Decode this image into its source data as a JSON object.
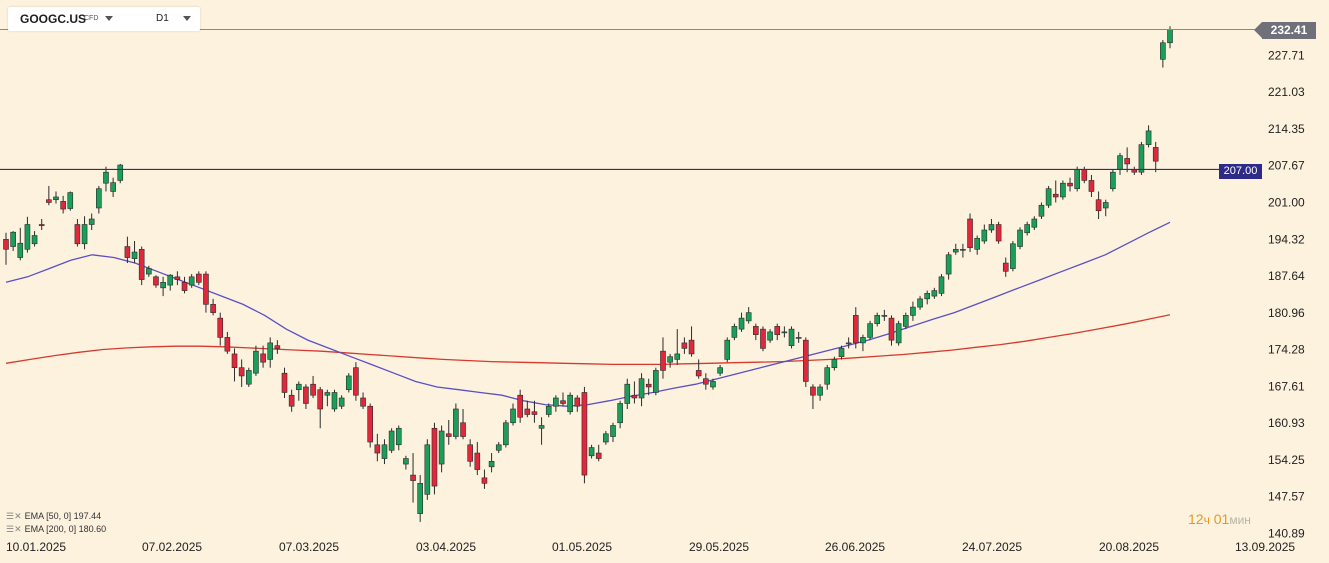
{
  "header": {
    "symbol": "GOOGC.US",
    "symbol_tag": "CFD",
    "timeframe": "D1"
  },
  "indicators": [
    {
      "label": "EMA [50, 0] 197.44",
      "color": "#5b4fc4"
    },
    {
      "label": "EMA [200, 0] 180.60",
      "color": "#d63a2f"
    }
  ],
  "countdown": {
    "hours": "12",
    "hours_unit": "ч",
    "minutes": "01",
    "minutes_unit": "мин"
  },
  "price_tag": "232.41",
  "level_tag": "207.00",
  "colors": {
    "up": "#1b9e5a",
    "down": "#e0283c",
    "level_line": "#2e2a88",
    "ema50": "#5b4fc4",
    "ema200": "#d63a2f",
    "background": "#fdf2de"
  },
  "chart_data": {
    "type": "candlestick",
    "y_ticks": [
      "232.41",
      "227.71",
      "221.03",
      "214.35",
      "207.67",
      "201.00",
      "194.32",
      "187.64",
      "180.96",
      "174.28",
      "167.61",
      "160.93",
      "154.25",
      "147.57",
      "140.89"
    ],
    "x_ticks": [
      "10.01.2025",
      "07.02.2025",
      "07.03.2025",
      "03.04.2025",
      "01.05.2025",
      "29.05.2025",
      "26.06.2025",
      "24.07.2025",
      "20.08.2025",
      "13.09.2025"
    ],
    "ylim": [
      140.89,
      232.41
    ],
    "horizontal_level": 207.0,
    "last_price": 232.41,
    "candles_ohlc": [
      [
        194.3,
        195.5,
        189.7,
        192.5
      ],
      [
        193.0,
        195.8,
        192.2,
        195.6
      ],
      [
        191.0,
        196.4,
        190.5,
        193.6
      ],
      [
        192.5,
        198.4,
        191.9,
        197.0
      ],
      [
        193.5,
        195.8,
        193.0,
        195.0
      ],
      [
        197.0,
        198.0,
        196.0,
        196.8
      ],
      [
        201.5,
        204.0,
        200.5,
        201.0
      ],
      [
        201.5,
        203.0,
        200.8,
        202.0
      ],
      [
        201.2,
        202.2,
        199.0,
        199.8
      ],
      [
        199.9,
        203.0,
        199.5,
        202.8
      ],
      [
        197.0,
        198.0,
        193.0,
        193.5
      ],
      [
        193.5,
        198.5,
        192.5,
        197.0
      ],
      [
        197.0,
        199.0,
        196.0,
        198.0
      ],
      [
        200.0,
        204.0,
        199.0,
        203.5
      ],
      [
        204.5,
        207.5,
        203.0,
        206.5
      ],
      [
        203.0,
        205.5,
        202.0,
        204.6
      ],
      [
        205.0,
        208.0,
        204.5,
        207.8
      ],
      [
        193.0,
        194.8,
        190.0,
        191.0
      ],
      [
        190.8,
        194.0,
        190.0,
        192.0
      ],
      [
        192.5,
        193.0,
        186.0,
        187.0
      ],
      [
        188.0,
        189.5,
        187.5,
        189.0
      ],
      [
        187.5,
        187.8,
        185.5,
        186.0
      ],
      [
        185.5,
        187.5,
        184.0,
        186.5
      ],
      [
        186.0,
        188.0,
        185.0,
        187.8
      ],
      [
        187.5,
        188.5,
        186.0,
        187.0
      ],
      [
        186.5,
        187.5,
        184.5,
        185.0
      ],
      [
        186.0,
        188.0,
        185.5,
        187.5
      ],
      [
        188.0,
        188.5,
        186.0,
        186.5
      ],
      [
        188.0,
        188.5,
        181.0,
        182.5
      ],
      [
        182.5,
        183.5,
        180.5,
        181.0
      ],
      [
        180.0,
        181.0,
        175.0,
        176.5
      ],
      [
        176.5,
        177.5,
        173.5,
        174.0
      ],
      [
        173.5,
        174.5,
        168.5,
        171.0
      ],
      [
        171.0,
        172.5,
        167.5,
        169.5
      ],
      [
        168.0,
        171.0,
        167.5,
        170.5
      ],
      [
        170.0,
        175.0,
        169.5,
        174.0
      ],
      [
        173.5,
        175.0,
        171.0,
        172.0
      ],
      [
        172.5,
        176.5,
        171.0,
        175.5
      ],
      [
        175.0,
        176.0,
        173.5,
        174.5
      ],
      [
        170.0,
        171.0,
        165.5,
        166.5
      ],
      [
        166.0,
        167.0,
        163.0,
        164.0
      ],
      [
        167.0,
        168.5,
        165.0,
        168.0
      ],
      [
        167.5,
        168.0,
        163.5,
        164.5
      ],
      [
        168.0,
        169.5,
        165.5,
        166.0
      ],
      [
        167.0,
        167.5,
        160.0,
        163.5
      ],
      [
        166.0,
        167.0,
        164.0,
        166.5
      ],
      [
        163.5,
        167.0,
        163.0,
        166.5
      ],
      [
        164.0,
        166.0,
        163.5,
        165.5
      ],
      [
        167.0,
        170.0,
        166.5,
        169.5
      ],
      [
        171.0,
        172.0,
        165.0,
        166.0
      ],
      [
        165.5,
        166.5,
        163.5,
        164.0
      ],
      [
        164.0,
        164.5,
        156.5,
        157.5
      ],
      [
        157.0,
        159.0,
        154.0,
        155.5
      ],
      [
        154.5,
        158.0,
        153.5,
        157.0
      ],
      [
        156.0,
        160.0,
        155.5,
        159.5
      ],
      [
        157.0,
        160.5,
        156.0,
        160.0
      ],
      [
        153.5,
        155.0,
        152.5,
        154.5
      ],
      [
        151.5,
        155.5,
        146.5,
        150.5
      ],
      [
        144.5,
        151.5,
        143.0,
        150.0
      ],
      [
        148.0,
        158.0,
        147.0,
        157.0
      ],
      [
        160.0,
        161.0,
        148.0,
        149.5
      ],
      [
        153.5,
        160.5,
        152.0,
        159.5
      ],
      [
        159.0,
        161.5,
        157.0,
        158.5
      ],
      [
        158.5,
        164.5,
        158.0,
        163.5
      ],
      [
        161.0,
        163.5,
        158.0,
        158.5
      ],
      [
        157.0,
        158.0,
        153.0,
        154.0
      ],
      [
        155.5,
        157.5,
        151.5,
        152.5
      ],
      [
        151.0,
        152.5,
        149.0,
        150.0
      ],
      [
        153.0,
        155.5,
        152.0,
        154.0
      ],
      [
        156.0,
        157.5,
        155.5,
        157.0
      ],
      [
        157.0,
        161.5,
        156.5,
        161.0
      ],
      [
        161.0,
        164.5,
        160.5,
        163.5
      ],
      [
        166.0,
        167.0,
        161.0,
        162.0
      ],
      [
        163.5,
        165.0,
        162.0,
        162.5
      ],
      [
        163.0,
        165.0,
        161.0,
        162.5
      ],
      [
        160.0,
        162.0,
        157.0,
        160.5
      ],
      [
        162.5,
        164.5,
        162.0,
        164.0
      ],
      [
        164.0,
        166.0,
        163.0,
        165.5
      ],
      [
        165.0,
        166.5,
        164.0,
        164.5
      ],
      [
        163.0,
        166.5,
        162.5,
        166.0
      ],
      [
        165.5,
        166.0,
        163.0,
        164.0
      ],
      [
        166.5,
        167.5,
        150.0,
        151.5
      ],
      [
        155.0,
        157.0,
        154.5,
        156.5
      ],
      [
        155.5,
        157.0,
        154.0,
        154.5
      ],
      [
        157.5,
        159.5,
        157.0,
        159.0
      ],
      [
        158.5,
        161.0,
        157.5,
        160.5
      ],
      [
        161.0,
        165.0,
        160.0,
        164.5
      ],
      [
        164.5,
        169.0,
        163.5,
        168.0
      ],
      [
        166.0,
        168.5,
        164.5,
        165.5
      ],
      [
        165.5,
        170.0,
        164.0,
        169.0
      ],
      [
        168.0,
        169.0,
        166.0,
        167.5
      ],
      [
        166.5,
        171.0,
        166.0,
        170.5
      ],
      [
        174.0,
        176.5,
        169.0,
        170.5
      ],
      [
        172.0,
        173.5,
        171.0,
        173.0
      ],
      [
        172.5,
        178.0,
        171.5,
        173.5
      ],
      [
        175.5,
        176.5,
        173.5,
        174.5
      ],
      [
        176.0,
        178.5,
        173.0,
        173.5
      ],
      [
        170.5,
        172.5,
        169.0,
        169.5
      ],
      [
        169.0,
        170.0,
        167.0,
        168.0
      ],
      [
        167.5,
        169.0,
        167.0,
        168.5
      ],
      [
        170.0,
        171.5,
        169.5,
        171.0
      ],
      [
        172.5,
        176.5,
        172.0,
        176.0
      ],
      [
        176.5,
        179.0,
        176.0,
        178.5
      ],
      [
        178.0,
        181.0,
        177.5,
        180.0
      ],
      [
        179.5,
        182.0,
        179.0,
        181.0
      ],
      [
        178.5,
        179.0,
        176.0,
        177.0
      ],
      [
        178.0,
        178.5,
        174.0,
        174.5
      ],
      [
        176.0,
        178.0,
        175.5,
        177.5
      ],
      [
        178.5,
        179.0,
        176.0,
        177.0
      ],
      [
        177.5,
        178.5,
        176.5,
        177.5
      ],
      [
        175.0,
        178.5,
        174.5,
        178.0
      ],
      [
        176.5,
        177.5,
        175.5,
        176.5
      ],
      [
        176.0,
        176.5,
        167.5,
        168.5
      ],
      [
        167.5,
        168.0,
        163.5,
        166.0
      ],
      [
        166.0,
        168.0,
        165.0,
        167.5
      ],
      [
        168.0,
        171.5,
        167.0,
        171.0
      ],
      [
        171.0,
        173.0,
        170.5,
        172.5
      ],
      [
        173.0,
        175.0,
        172.5,
        174.5
      ],
      [
        175.5,
        176.5,
        174.5,
        175.5
      ],
      [
        180.5,
        182.0,
        174.5,
        175.5
      ],
      [
        175.5,
        177.0,
        174.0,
        176.5
      ],
      [
        176.5,
        179.5,
        176.0,
        179.0
      ],
      [
        179.0,
        181.0,
        178.5,
        180.5
      ],
      [
        180.5,
        181.5,
        179.5,
        180.5
      ],
      [
        180.0,
        180.5,
        175.0,
        176.0
      ],
      [
        175.5,
        179.5,
        175.0,
        179.0
      ],
      [
        178.5,
        181.0,
        178.0,
        180.5
      ],
      [
        180.5,
        183.0,
        179.5,
        182.0
      ],
      [
        182.0,
        184.0,
        181.5,
        183.5
      ],
      [
        183.5,
        185.0,
        182.5,
        184.5
      ],
      [
        184.0,
        185.5,
        183.5,
        185.0
      ],
      [
        184.5,
        188.0,
        184.0,
        187.5
      ],
      [
        188.0,
        192.0,
        187.0,
        191.5
      ],
      [
        192.0,
        193.5,
        191.5,
        192.5
      ],
      [
        192.5,
        193.5,
        191.0,
        192.5
      ],
      [
        198.0,
        199.0,
        192.0,
        192.8
      ],
      [
        192.5,
        195.0,
        191.5,
        194.5
      ],
      [
        194.0,
        197.0,
        193.5,
        196.0
      ],
      [
        196.0,
        198.0,
        195.5,
        197.0
      ],
      [
        197.0,
        197.5,
        193.5,
        194.0
      ],
      [
        190.0,
        191.0,
        187.5,
        188.5
      ],
      [
        189.0,
        194.0,
        188.5,
        193.5
      ],
      [
        193.0,
        196.5,
        192.5,
        196.0
      ],
      [
        195.5,
        197.5,
        195.0,
        197.0
      ],
      [
        196.5,
        198.5,
        196.0,
        198.0
      ],
      [
        198.5,
        201.0,
        198.0,
        200.5
      ],
      [
        200.5,
        204.0,
        200.0,
        203.5
      ],
      [
        202.5,
        205.0,
        201.0,
        202.0
      ],
      [
        202.0,
        205.0,
        201.5,
        204.5
      ],
      [
        204.5,
        205.5,
        203.0,
        204.0
      ],
      [
        203.5,
        207.5,
        203.0,
        207.0
      ],
      [
        207.0,
        207.5,
        204.5,
        205.0
      ],
      [
        205.0,
        206.0,
        202.0,
        203.0
      ],
      [
        201.5,
        203.0,
        198.0,
        199.5
      ],
      [
        200.0,
        201.5,
        198.5,
        201.0
      ],
      [
        203.5,
        207.0,
        203.0,
        206.5
      ],
      [
        207.0,
        210.0,
        206.0,
        209.5
      ],
      [
        209.0,
        211.0,
        206.5,
        208.0
      ],
      [
        207.0,
        207.5,
        206.0,
        206.5
      ],
      [
        206.5,
        212.0,
        206.0,
        211.5
      ],
      [
        211.5,
        215.0,
        211.0,
        214.0
      ],
      [
        211.0,
        212.0,
        206.5,
        208.5
      ],
      [
        227.0,
        230.5,
        225.5,
        230.0
      ],
      [
        230.0,
        233.0,
        229.0,
        232.4
      ]
    ],
    "ema50": [
      186.5,
      187.5,
      189.0,
      190.5,
      191.5,
      191.0,
      190.0,
      188.5,
      187.0,
      185.5,
      184.0,
      182.5,
      180.5,
      178.0,
      176.0,
      174.5,
      173.0,
      171.5,
      170.0,
      168.5,
      167.5,
      167.0,
      166.5,
      166.0,
      165.0,
      164.3,
      164.0,
      164.3,
      165.0,
      165.8,
      166.5,
      167.3,
      168.0,
      169.0,
      170.0,
      171.0,
      172.0,
      173.0,
      174.0,
      175.0,
      176.0,
      177.2,
      178.5,
      179.8,
      181.0,
      182.5,
      184.0,
      185.5,
      187.0,
      188.5,
      190.0,
      191.5,
      193.5,
      195.5,
      197.4
    ],
    "ema200": [
      171.8,
      172.5,
      173.2,
      173.8,
      174.3,
      174.6,
      174.8,
      174.9,
      174.9,
      174.8,
      174.6,
      174.4,
      174.2,
      174.0,
      173.7,
      173.4,
      173.1,
      172.8,
      172.5,
      172.3,
      172.1,
      172.0,
      171.9,
      171.8,
      171.7,
      171.6,
      171.6,
      171.6,
      171.7,
      171.8,
      171.9,
      172.0,
      172.1,
      172.3,
      172.5,
      172.8,
      173.1,
      173.4,
      173.8,
      174.2,
      174.7,
      175.2,
      175.8,
      176.5,
      177.2,
      178.0,
      178.8,
      179.7,
      180.6
    ]
  }
}
